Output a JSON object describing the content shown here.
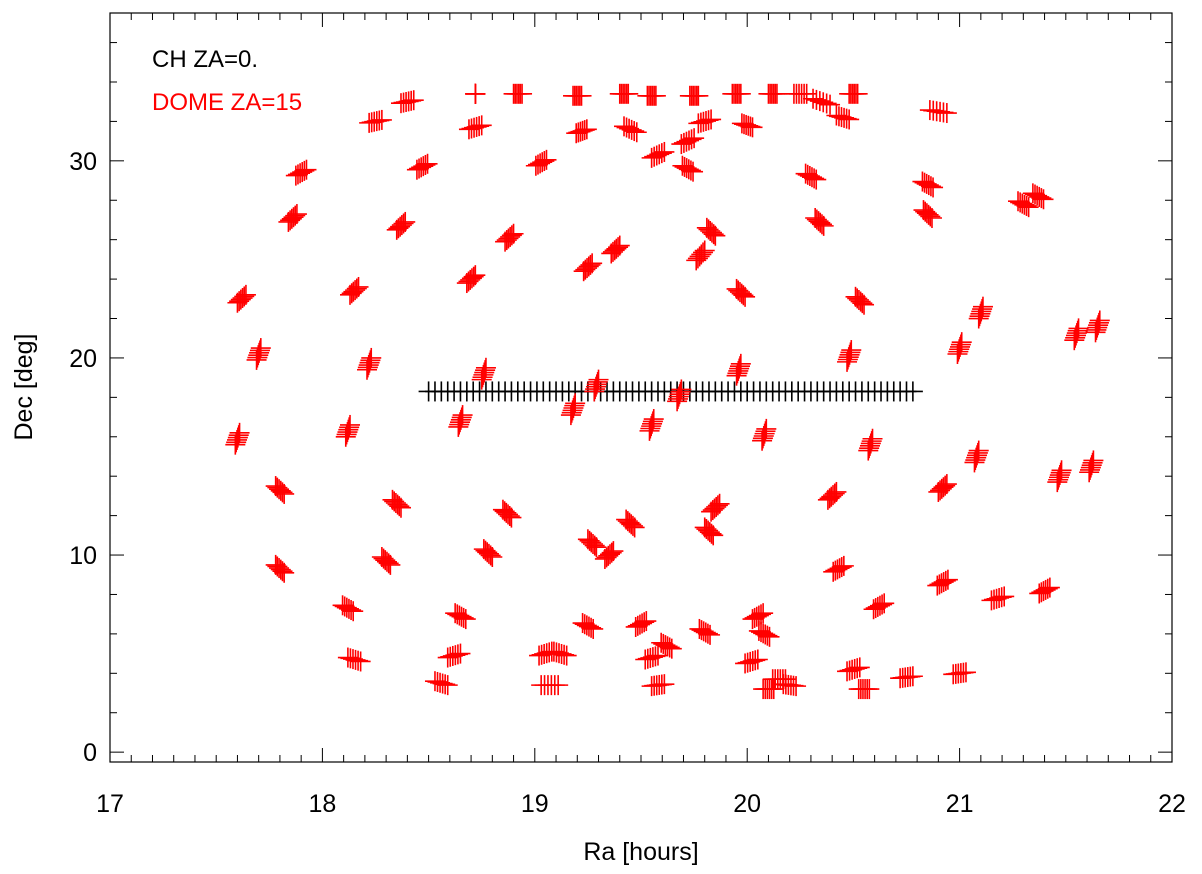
{
  "chart_data": {
    "type": "scatter",
    "xlabel": "Ra [hours]",
    "ylabel": "Dec [deg]",
    "xlim": [
      17,
      22
    ],
    "ylim": [
      -0.5,
      37.5
    ],
    "xticks": [
      17,
      18,
      19,
      20,
      21,
      22
    ],
    "xtick_labels": [
      "17",
      "18",
      "19",
      "20",
      "21",
      "22"
    ],
    "yticks": [
      0,
      10,
      20,
      30
    ],
    "ytick_labels": [
      "0",
      "10",
      "20",
      "30"
    ],
    "grid": false,
    "legend_position": "top-left",
    "series": [
      {
        "name": "CH ZA=0.",
        "color": "#000000",
        "marker": "plus",
        "points": [
          [
            18.5,
            18.3
          ],
          [
            18.53,
            18.3
          ],
          [
            18.56,
            18.3
          ],
          [
            18.59,
            18.3
          ],
          [
            18.62,
            18.3
          ],
          [
            18.65,
            18.3
          ],
          [
            18.68,
            18.3
          ],
          [
            18.71,
            18.3
          ],
          [
            18.74,
            18.3
          ],
          [
            18.77,
            18.3
          ],
          [
            18.8,
            18.3
          ],
          [
            18.83,
            18.3
          ],
          [
            18.86,
            18.3
          ],
          [
            18.89,
            18.3
          ],
          [
            18.92,
            18.3
          ],
          [
            18.95,
            18.3
          ],
          [
            18.98,
            18.3
          ],
          [
            19.01,
            18.3
          ],
          [
            19.04,
            18.3
          ],
          [
            19.07,
            18.3
          ],
          [
            19.1,
            18.3
          ],
          [
            19.13,
            18.3
          ],
          [
            19.16,
            18.3
          ],
          [
            19.19,
            18.3
          ],
          [
            19.22,
            18.3
          ],
          [
            19.25,
            18.3
          ],
          [
            19.28,
            18.3
          ],
          [
            19.31,
            18.3
          ],
          [
            19.34,
            18.3
          ],
          [
            19.37,
            18.3
          ],
          [
            19.4,
            18.3
          ],
          [
            19.43,
            18.3
          ],
          [
            19.46,
            18.3
          ],
          [
            19.49,
            18.3
          ],
          [
            19.52,
            18.3
          ],
          [
            19.55,
            18.3
          ],
          [
            19.58,
            18.3
          ],
          [
            19.61,
            18.3
          ],
          [
            19.64,
            18.3
          ],
          [
            19.67,
            18.3
          ],
          [
            19.7,
            18.3
          ],
          [
            19.73,
            18.3
          ],
          [
            19.76,
            18.3
          ],
          [
            19.79,
            18.3
          ],
          [
            19.82,
            18.3
          ],
          [
            19.85,
            18.3
          ],
          [
            19.88,
            18.3
          ],
          [
            19.91,
            18.3
          ],
          [
            19.94,
            18.3
          ],
          [
            19.97,
            18.3
          ],
          [
            20.0,
            18.3
          ],
          [
            20.03,
            18.3
          ],
          [
            20.06,
            18.3
          ],
          [
            20.09,
            18.3
          ],
          [
            20.12,
            18.3
          ],
          [
            20.15,
            18.3
          ],
          [
            20.18,
            18.3
          ],
          [
            20.21,
            18.3
          ],
          [
            20.24,
            18.3
          ],
          [
            20.27,
            18.3
          ],
          [
            20.3,
            18.3
          ],
          [
            20.33,
            18.3
          ],
          [
            20.36,
            18.3
          ],
          [
            20.39,
            18.3
          ],
          [
            20.42,
            18.3
          ],
          [
            20.45,
            18.3
          ],
          [
            20.48,
            18.3
          ],
          [
            20.51,
            18.3
          ],
          [
            20.54,
            18.3
          ],
          [
            20.57,
            18.3
          ],
          [
            20.6,
            18.3
          ],
          [
            20.63,
            18.3
          ],
          [
            20.66,
            18.3
          ],
          [
            20.69,
            18.3
          ],
          [
            20.72,
            18.3
          ],
          [
            20.75,
            18.3
          ],
          [
            20.78,
            18.3
          ]
        ]
      },
      {
        "name": "DOME ZA=15",
        "color": "#ff0000",
        "marker": "plus",
        "clusters": [
          [
            18.72,
            33.4,
            0,
            0
          ],
          [
            18.92,
            33.4,
            0.04,
            0
          ],
          [
            19.2,
            33.3,
            0.04,
            0
          ],
          [
            19.42,
            33.4,
            0.04,
            0
          ],
          [
            19.55,
            33.3,
            0.04,
            0
          ],
          [
            19.75,
            33.3,
            0.04,
            0
          ],
          [
            19.95,
            33.4,
            0.04,
            0
          ],
          [
            20.12,
            33.4,
            0.04,
            0
          ],
          [
            20.25,
            33.4,
            0.06,
            0
          ],
          [
            20.35,
            33.0,
            0.08,
            -0.3
          ],
          [
            20.5,
            33.4,
            0.04,
            0
          ],
          [
            18.4,
            33.0,
            0.06,
            0.15
          ],
          [
            18.25,
            32.0,
            0.06,
            0.15
          ],
          [
            18.72,
            31.7,
            0.06,
            0.2
          ],
          [
            19.22,
            31.5,
            0.05,
            0.2
          ],
          [
            19.45,
            31.6,
            0.06,
            -0.3
          ],
          [
            19.58,
            30.3,
            0.06,
            0.3
          ],
          [
            19.72,
            31.0,
            0.06,
            0.3
          ],
          [
            19.8,
            32.0,
            0.06,
            0.2
          ],
          [
            20.0,
            31.8,
            0.05,
            -0.2
          ],
          [
            20.45,
            32.2,
            0.06,
            -0.2
          ],
          [
            20.9,
            32.5,
            0.08,
            -0.15
          ],
          [
            17.9,
            29.4,
            0.05,
            0.3
          ],
          [
            17.86,
            27.1,
            0.04,
            0.4
          ],
          [
            18.47,
            29.7,
            0.05,
            0.3
          ],
          [
            18.37,
            26.7,
            0.04,
            0.4
          ],
          [
            19.03,
            29.9,
            0.05,
            0.3
          ],
          [
            18.88,
            26.1,
            0.04,
            0.4
          ],
          [
            19.38,
            25.5,
            0.04,
            0.4
          ],
          [
            19.25,
            24.6,
            0.04,
            0.4
          ],
          [
            19.72,
            29.6,
            0.05,
            -0.3
          ],
          [
            19.78,
            25.2,
            0.04,
            0.5
          ],
          [
            19.83,
            26.4,
            0.04,
            -0.4
          ],
          [
            20.3,
            29.2,
            0.05,
            -0.3
          ],
          [
            20.34,
            26.9,
            0.04,
            -0.4
          ],
          [
            20.85,
            28.8,
            0.05,
            -0.3
          ],
          [
            20.85,
            27.3,
            0.04,
            -0.4
          ],
          [
            21.3,
            27.8,
            0.05,
            -0.3
          ],
          [
            21.37,
            28.2,
            0.05,
            -0.3
          ],
          [
            17.62,
            23.0,
            0.04,
            0.4
          ],
          [
            17.7,
            20.2,
            0.02,
            0.6
          ],
          [
            18.15,
            23.4,
            0.04,
            0.4
          ],
          [
            18.22,
            19.7,
            0.02,
            0.6
          ],
          [
            18.7,
            24.0,
            0.04,
            0.4
          ],
          [
            18.76,
            19.2,
            0.02,
            0.6
          ],
          [
            19.97,
            23.3,
            0.04,
            -0.4
          ],
          [
            19.96,
            19.4,
            0.02,
            0.6
          ],
          [
            20.53,
            22.9,
            0.04,
            -0.4
          ],
          [
            20.48,
            20.1,
            0.02,
            0.6
          ],
          [
            21.1,
            22.3,
            0.02,
            0.6
          ],
          [
            21.0,
            20.5,
            0.02,
            0.6
          ],
          [
            21.55,
            21.2,
            0.02,
            0.6
          ],
          [
            21.65,
            21.6,
            0.02,
            0.6
          ],
          [
            17.6,
            15.9,
            0.02,
            0.6
          ],
          [
            18.12,
            16.3,
            0.02,
            0.6
          ],
          [
            18.65,
            16.8,
            0.02,
            0.6
          ],
          [
            19.18,
            17.4,
            0.02,
            0.6
          ],
          [
            19.29,
            18.6,
            0.02,
            0.6
          ],
          [
            19.55,
            16.6,
            0.02,
            0.6
          ],
          [
            19.68,
            18.1,
            0.02,
            0.6
          ],
          [
            20.08,
            16.1,
            0.02,
            0.6
          ],
          [
            20.58,
            15.6,
            0.02,
            0.6
          ],
          [
            21.08,
            15.0,
            0.02,
            0.6
          ],
          [
            21.47,
            14.0,
            0.02,
            0.6
          ],
          [
            21.62,
            14.5,
            0.02,
            0.6
          ],
          [
            17.8,
            13.3,
            0.04,
            -0.4
          ],
          [
            17.8,
            9.3,
            0.04,
            -0.4
          ],
          [
            18.35,
            12.6,
            0.04,
            -0.4
          ],
          [
            18.3,
            9.7,
            0.04,
            -0.4
          ],
          [
            18.87,
            12.1,
            0.04,
            -0.4
          ],
          [
            18.78,
            10.1,
            0.04,
            -0.4
          ],
          [
            19.27,
            10.6,
            0.04,
            -0.4
          ],
          [
            19.35,
            10.0,
            0.04,
            0.4
          ],
          [
            19.45,
            11.6,
            0.04,
            -0.4
          ],
          [
            19.82,
            11.2,
            0.04,
            -0.4
          ],
          [
            19.85,
            12.4,
            0.04,
            0.4
          ],
          [
            20.4,
            13.0,
            0.04,
            0.4
          ],
          [
            20.43,
            9.3,
            0.05,
            0.3
          ],
          [
            20.92,
            13.4,
            0.04,
            0.4
          ],
          [
            20.92,
            8.6,
            0.05,
            0.3
          ],
          [
            21.18,
            7.8,
            0.06,
            0.2
          ],
          [
            21.4,
            8.2,
            0.05,
            0.3
          ],
          [
            18.12,
            7.3,
            0.05,
            -0.3
          ],
          [
            18.15,
            4.7,
            0.06,
            -0.2
          ],
          [
            18.65,
            6.9,
            0.05,
            -0.3
          ],
          [
            18.62,
            4.9,
            0.06,
            0.2
          ],
          [
            18.56,
            3.5,
            0.06,
            -0.2
          ],
          [
            19.05,
            5.0,
            0.06,
            0.2
          ],
          [
            19.12,
            5.0,
            0.06,
            -0.2
          ],
          [
            19.25,
            6.4,
            0.05,
            -0.3
          ],
          [
            19.07,
            3.4,
            0.08,
            0
          ],
          [
            19.5,
            6.5,
            0.05,
            0.3
          ],
          [
            19.55,
            4.8,
            0.06,
            0.2
          ],
          [
            19.62,
            5.4,
            0.05,
            -0.3
          ],
          [
            19.58,
            3.4,
            0.06,
            0.1
          ],
          [
            19.8,
            6.1,
            0.05,
            -0.3
          ],
          [
            20.05,
            6.9,
            0.05,
            0.3
          ],
          [
            20.08,
            6.0,
            0.05,
            -0.3
          ],
          [
            20.02,
            4.6,
            0.06,
            0.2
          ],
          [
            20.1,
            3.2,
            0.05,
            0
          ],
          [
            20.15,
            3.7,
            0.06,
            0
          ],
          [
            20.2,
            3.4,
            0.06,
            -0.1
          ],
          [
            20.55,
            3.2,
            0.05,
            0
          ],
          [
            20.5,
            4.2,
            0.06,
            0.2
          ],
          [
            20.62,
            7.4,
            0.05,
            0.3
          ],
          [
            20.75,
            3.8,
            0.06,
            0.1
          ],
          [
            21.0,
            4.0,
            0.06,
            0.1
          ]
        ]
      }
    ]
  }
}
